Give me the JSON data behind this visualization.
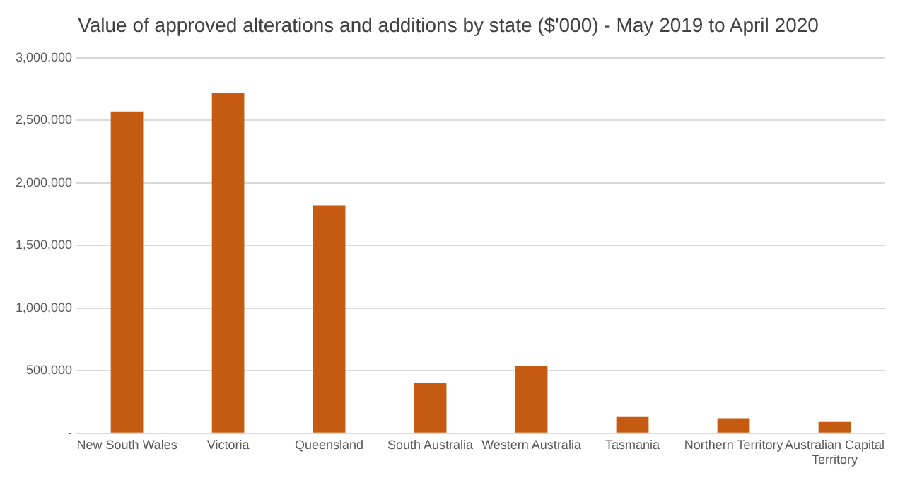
{
  "chart_data": {
    "type": "bar",
    "title": "Value of approved alterations and additions by state ($'000) - May 2019 to April 2020",
    "categories": [
      "New South Wales",
      "Victoria",
      "Queensland",
      "South Australia",
      "Western Australia",
      "Tasmania",
      "Northern Territory",
      "Australian Capital Territory"
    ],
    "values": [
      2570000,
      2720000,
      1820000,
      400000,
      540000,
      130000,
      120000,
      90000
    ],
    "color": "#c55a11",
    "ylim": [
      0,
      3000000
    ],
    "yticks": [
      {
        "value": 0,
        "label": "-"
      },
      {
        "value": 500000,
        "label": "500,000"
      },
      {
        "value": 1000000,
        "label": "1,000,000"
      },
      {
        "value": 1500000,
        "label": "1,500,000"
      },
      {
        "value": 2000000,
        "label": "2,000,000"
      },
      {
        "value": 2500000,
        "label": "2,500,000"
      },
      {
        "value": 3000000,
        "label": "3,000,000"
      }
    ],
    "grid": "y"
  }
}
